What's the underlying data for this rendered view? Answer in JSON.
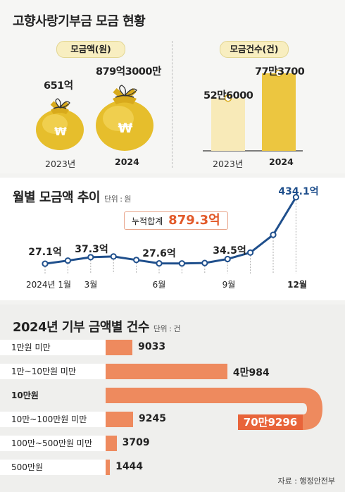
{
  "section1": {
    "title": "고향사랑기부금 모금 현황",
    "left_pill": "모금액(원)",
    "right_pill": "모금건수(건)",
    "amount": {
      "v2023": "651억",
      "v2024": "879억3000만",
      "y2023": "2023년",
      "y2024": "2024"
    },
    "count": {
      "v2023": "52만6000",
      "v2024": "77만3700",
      "y2023": "2023년",
      "y2024": "2024"
    },
    "colors": {
      "bag": "#e6be2c",
      "bar2023": "#f8eab8",
      "bar2024": "#ecc640"
    }
  },
  "section2": {
    "title": "월별 모금액 추이",
    "unit": "단위 : 원",
    "total_label": "누적합계",
    "total_value": "879.3억",
    "x_labels": [
      "2024년 1월",
      "3월",
      "6월",
      "9월",
      "12월"
    ],
    "point_labels": [
      "27.1억",
      "37.3억",
      "27.6억",
      "34.5억",
      "434.1억"
    ]
  },
  "section3": {
    "title": "2024년 기부 금액별 건수",
    "unit": "단위 : 건",
    "source": "자료 : 행정안전부"
  },
  "chart_data": [
    {
      "type": "line",
      "title": "월별 모금액 추이",
      "x": [
        1,
        2,
        3,
        4,
        5,
        6,
        7,
        8,
        9,
        10,
        11,
        12
      ],
      "values": [
        27.1,
        null,
        37.3,
        null,
        null,
        27.6,
        null,
        null,
        34.5,
        null,
        null,
        434.1
      ],
      "labeled_points": [
        1,
        3,
        6,
        9,
        12
      ]
    },
    {
      "type": "bar",
      "title": "2024년 기부 금액별 건수",
      "categories": [
        "1만원 미만",
        "1만~10만원 미만",
        "10만원",
        "10만~100만원 미만",
        "100만~500만원 미만",
        "500만원"
      ],
      "values": [
        9033,
        40984,
        709296,
        9245,
        3709,
        1444
      ],
      "value_labels": [
        "9033",
        "4만984",
        "70만9296",
        "9245",
        "3709",
        "1444"
      ],
      "color": "#ee8a5e",
      "highlight_color": "#e8643a"
    }
  ]
}
